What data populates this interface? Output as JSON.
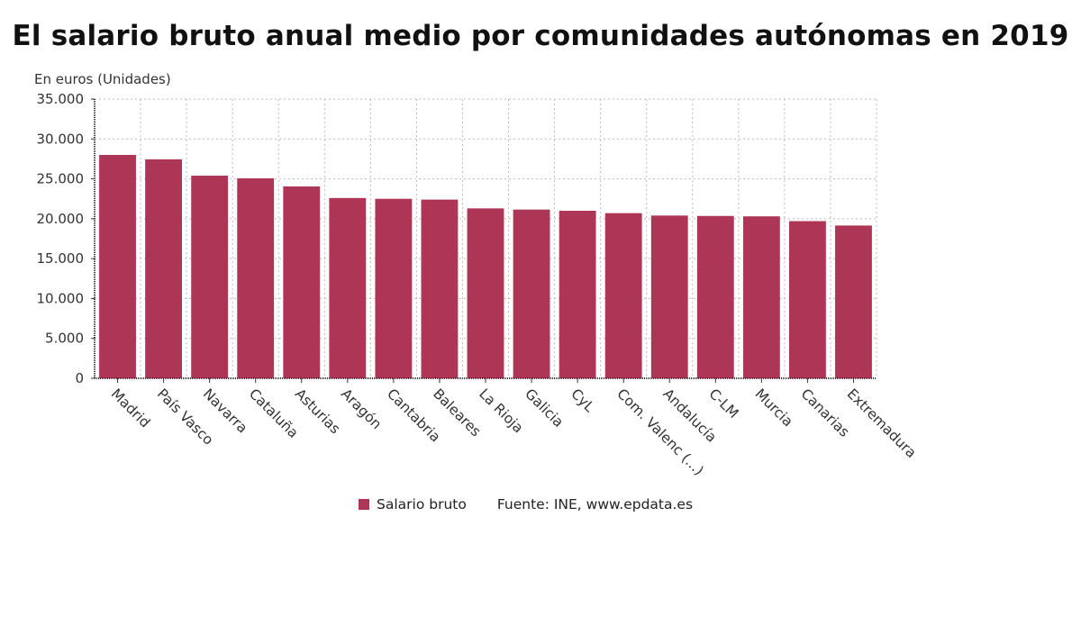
{
  "chart_data": {
    "type": "bar",
    "title": "El salario bruto anual medio por comunidades autónomas en 2019",
    "ylabel": "En euros (Unidades)",
    "xlabel": "",
    "ylim": [
      0,
      35000
    ],
    "yticks": [
      0,
      5000,
      10000,
      15000,
      20000,
      25000,
      30000,
      35000
    ],
    "ytick_labels": [
      "0",
      "5.000",
      "10.000",
      "15.000",
      "20.000",
      "25.000",
      "30.000",
      "35.000"
    ],
    "grid": true,
    "categories": [
      "Madrid",
      "País Vasco",
      "Navarra",
      "Cataluña",
      "Asturias",
      "Aragón",
      "Cantabria",
      "Baleares",
      "La Rioja",
      "Galicia",
      "CyL",
      "Com. Valenc (...)",
      "Andalucía",
      "C-LM",
      "Murcia",
      "Canarias",
      "Extremadura"
    ],
    "series": [
      {
        "name": "Salario bruto",
        "color": "#ad3657",
        "values": [
          28000,
          27450,
          25400,
          25070,
          24050,
          22600,
          22500,
          22400,
          21300,
          21150,
          21000,
          20700,
          20400,
          20350,
          20300,
          19700,
          19150
        ]
      }
    ],
    "legend_position": "bottom",
    "source": "Fuente: INE, www.epdata.es"
  }
}
